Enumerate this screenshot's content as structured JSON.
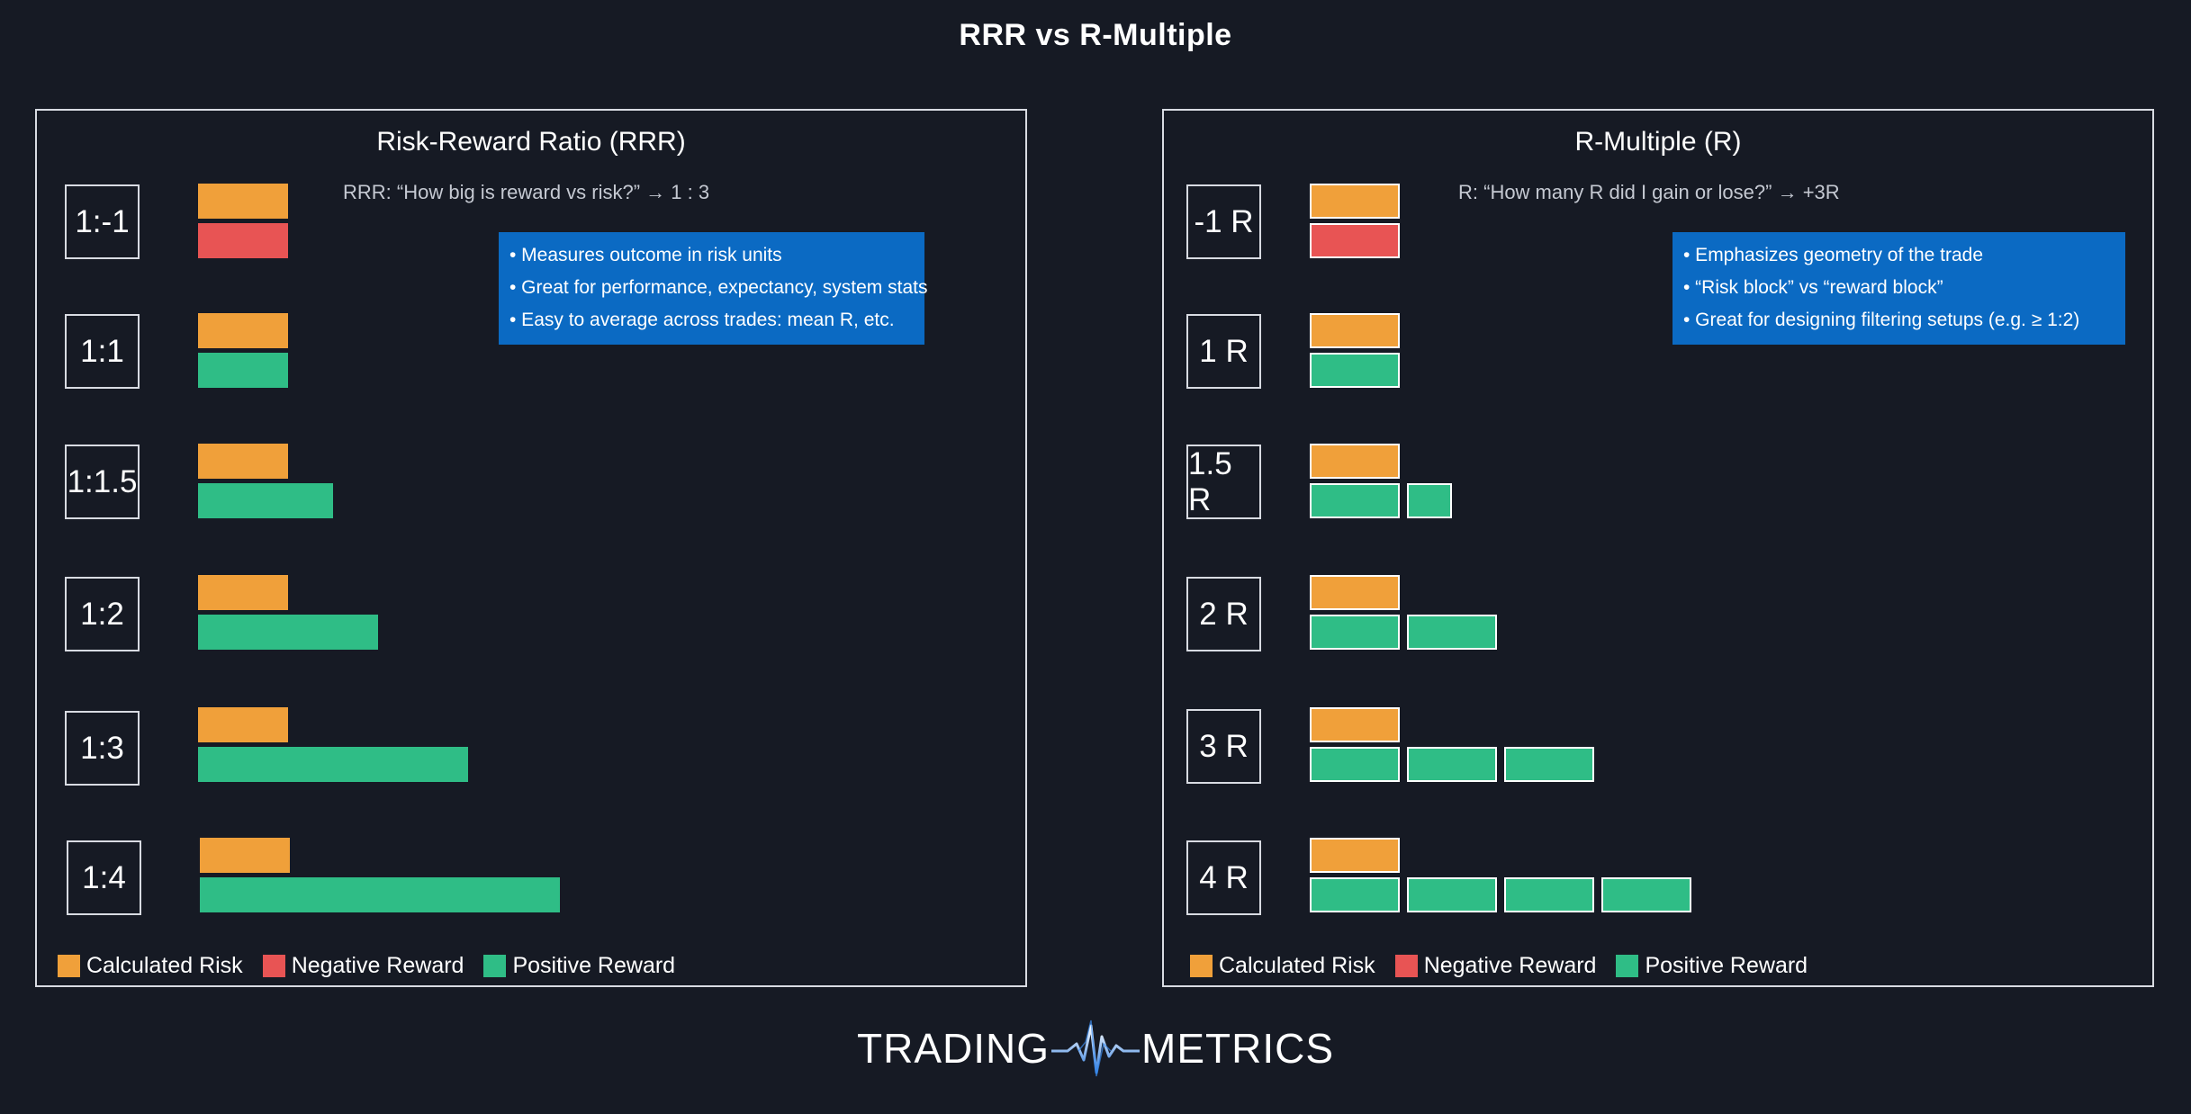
{
  "title": "RRR vs R-Multiple",
  "colors": {
    "background": "#161a24",
    "risk": "#f0a03a",
    "negative": "#e85454",
    "positive": "#2fbd86",
    "info_box": "#0b6ac3"
  },
  "left": {
    "title": "Risk-Reward Ratio (RRR)",
    "subtitle": "RRR: “How big is reward vs risk?” → 1 : 3",
    "info": [
      "• Measures outcome in risk units",
      "• Great for performance, expectancy, system stats",
      "• Easy to average across trades: mean R, etc."
    ],
    "rows": [
      {
        "label": "1:-1",
        "risk": 1,
        "reward": -1
      },
      {
        "label": "1:1",
        "risk": 1,
        "reward": 1
      },
      {
        "label": "1:1.5",
        "risk": 1,
        "reward": 1.5
      },
      {
        "label": "1:2",
        "risk": 1,
        "reward": 2
      },
      {
        "label": "1:3",
        "risk": 1,
        "reward": 3
      },
      {
        "label": "1:4",
        "risk": 1,
        "reward": 4
      }
    ],
    "legend": [
      "Calculated Risk",
      "Negative Reward",
      "Positive Reward"
    ]
  },
  "right": {
    "title": "R-Multiple (R)",
    "subtitle": "R: “How many R did I gain or lose?” → +3R",
    "info": [
      "• Emphasizes geometry of the trade",
      "• “Risk block” vs “reward block”",
      "• Great for designing filtering setups (e.g. ≥ 1:2)"
    ],
    "rows": [
      {
        "label": "-1 R",
        "risk": 1,
        "reward": -1
      },
      {
        "label": "1 R",
        "risk": 1,
        "reward": 1
      },
      {
        "label": "1.5 R",
        "risk": 1,
        "reward": 1.5
      },
      {
        "label": "2 R",
        "risk": 1,
        "reward": 2
      },
      {
        "label": "3 R",
        "risk": 1,
        "reward": 3
      },
      {
        "label": "4 R",
        "risk": 1,
        "reward": 4
      }
    ],
    "legend": [
      "Calculated Risk",
      "Negative Reward",
      "Positive Reward"
    ]
  },
  "brand": {
    "left": "TRADING",
    "right": "METRICS"
  }
}
